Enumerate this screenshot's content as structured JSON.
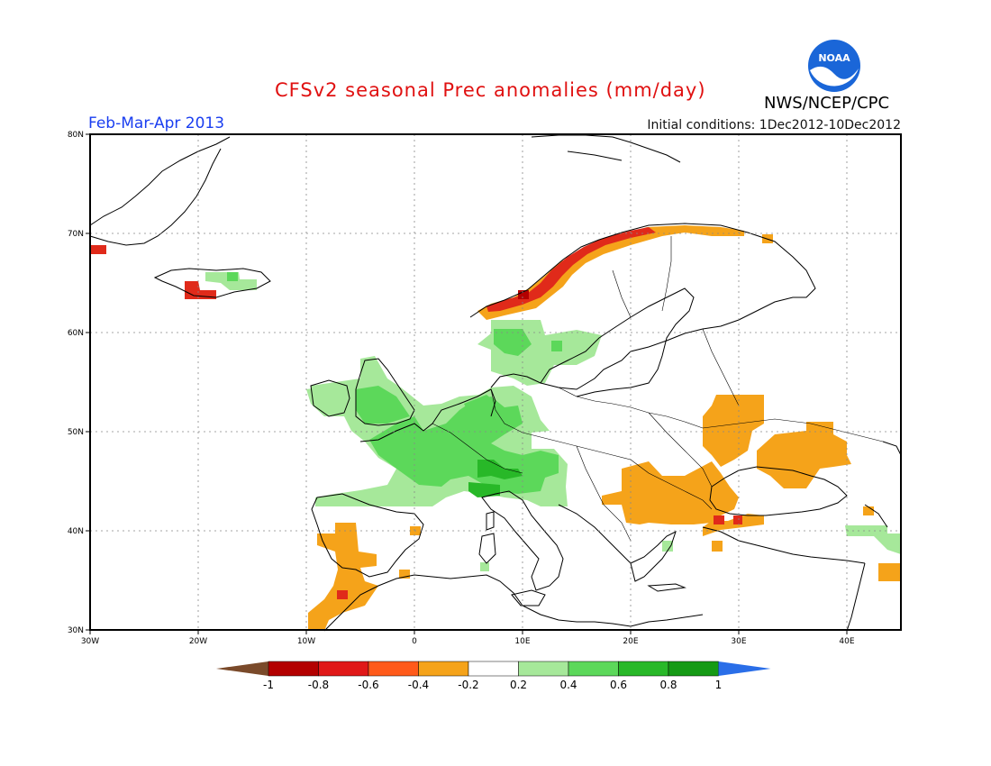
{
  "header": {
    "title": "CFSv2 seasonal Prec anomalies (mm/day)",
    "period": "Feb-Mar-Apr 2013",
    "initial_conditions": "Initial conditions: 1Dec2012-10Dec2012",
    "agency": "NWS/NCEP/CPC",
    "logo_text": "NOAA"
  },
  "map": {
    "region": "Europe",
    "lat_range": [
      30,
      80
    ],
    "lon_range": [
      -30,
      45
    ],
    "lat_labels": [
      "80N",
      "70N",
      "60N",
      "50N",
      "40N",
      "30N"
    ],
    "lon_labels": [
      "30W",
      "20W",
      "10W",
      "0",
      "10E",
      "20E",
      "30E",
      "40E"
    ],
    "anomalies": [
      {
        "region": "Norway coast",
        "level": "dark-red",
        "lon": [
          5,
          18
        ],
        "lat": [
          62,
          70
        ]
      },
      {
        "region": "Norway coast",
        "level": "orange",
        "lon": [
          6,
          30
        ],
        "lat": [
          62,
          71
        ]
      },
      {
        "region": "Southern Iceland",
        "level": "red",
        "lon": [
          -21,
          -18
        ],
        "lat": [
          63.5,
          64.5
        ]
      },
      {
        "region": "Iberia",
        "level": "orange",
        "lon": [
          -10,
          -3
        ],
        "lat": [
          30,
          40
        ]
      },
      {
        "region": "Balkans",
        "level": "orange",
        "lon": [
          18,
          32
        ],
        "lat": [
          40,
          47
        ]
      },
      {
        "region": "Ukraine / Russia",
        "level": "orange",
        "lon": [
          27,
          39
        ],
        "lat": [
          45,
          54
        ]
      },
      {
        "region": "Central Europe",
        "level": "green",
        "lon": [
          -4,
          15
        ],
        "lat": [
          42,
          54
        ]
      },
      {
        "region": "Southern Scandinavia",
        "level": "green",
        "lon": [
          7,
          18
        ],
        "lat": [
          56,
          61
        ]
      },
      {
        "region": "British Isles",
        "level": "green",
        "lon": [
          -9,
          1
        ],
        "lat": [
          51,
          58
        ]
      }
    ]
  },
  "legend": {
    "labels": [
      "-1",
      "-0.8",
      "-0.6",
      "-0.4",
      "-0.2",
      "0.2",
      "0.4",
      "0.6",
      "0.8",
      "1"
    ],
    "colors": [
      "#7a4a2a",
      "#b30000",
      "#e01818",
      "#ff5a1a",
      "#f5a31a",
      "#ffffff",
      "#a6e89a",
      "#5cd85a",
      "#28b828",
      "#159a15",
      "#2a6ee8"
    ]
  }
}
